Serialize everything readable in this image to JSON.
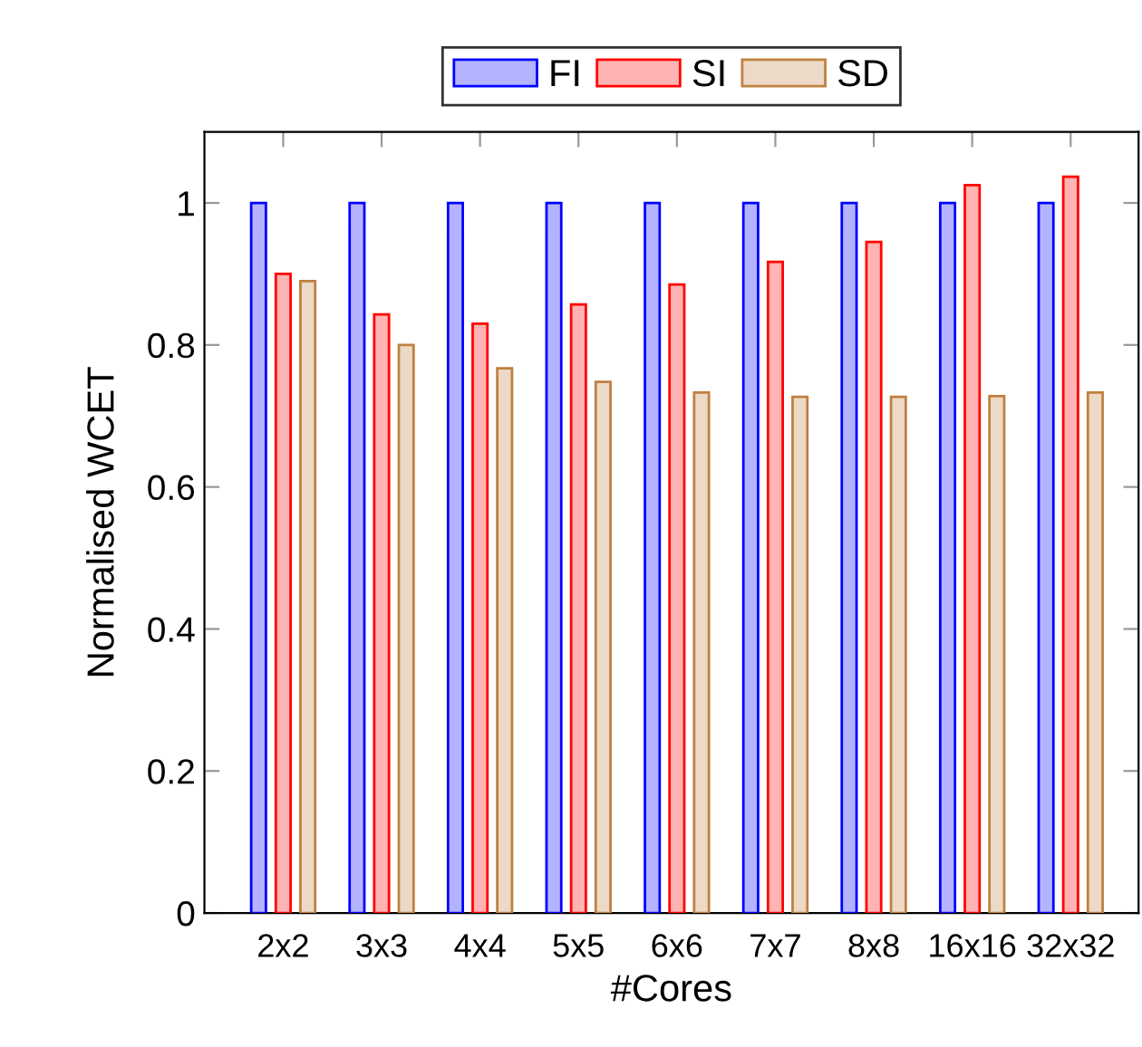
{
  "chart_data": {
    "type": "bar",
    "xlabel": "#Cores",
    "ylabel": "Normalised WCET",
    "categories": [
      "2x2",
      "3x3",
      "4x4",
      "5x5",
      "6x6",
      "7x7",
      "8x8",
      "16x16",
      "32x32"
    ],
    "series": [
      {
        "name": "FI",
        "color": "#b3b3ff",
        "values": [
          1,
          1,
          1,
          1,
          1,
          1,
          1,
          1,
          1
        ]
      },
      {
        "name": "SI",
        "color": "#ffb3b3",
        "values": [
          0.9,
          0.843,
          0.83,
          0.857,
          0.885,
          0.917,
          0.945,
          1.025,
          1.037
        ]
      },
      {
        "name": "SD",
        "color": "#ecd9c6",
        "values": [
          0.89,
          0.8,
          0.767,
          0.748,
          0.733,
          0.727,
          0.727,
          0.728,
          0.733
        ]
      }
    ],
    "ylim": [
      0,
      1.1
    ],
    "yticks": [
      0,
      0.2,
      0.4,
      0.6,
      0.8,
      1
    ],
    "legend": "top",
    "grid": false
  }
}
